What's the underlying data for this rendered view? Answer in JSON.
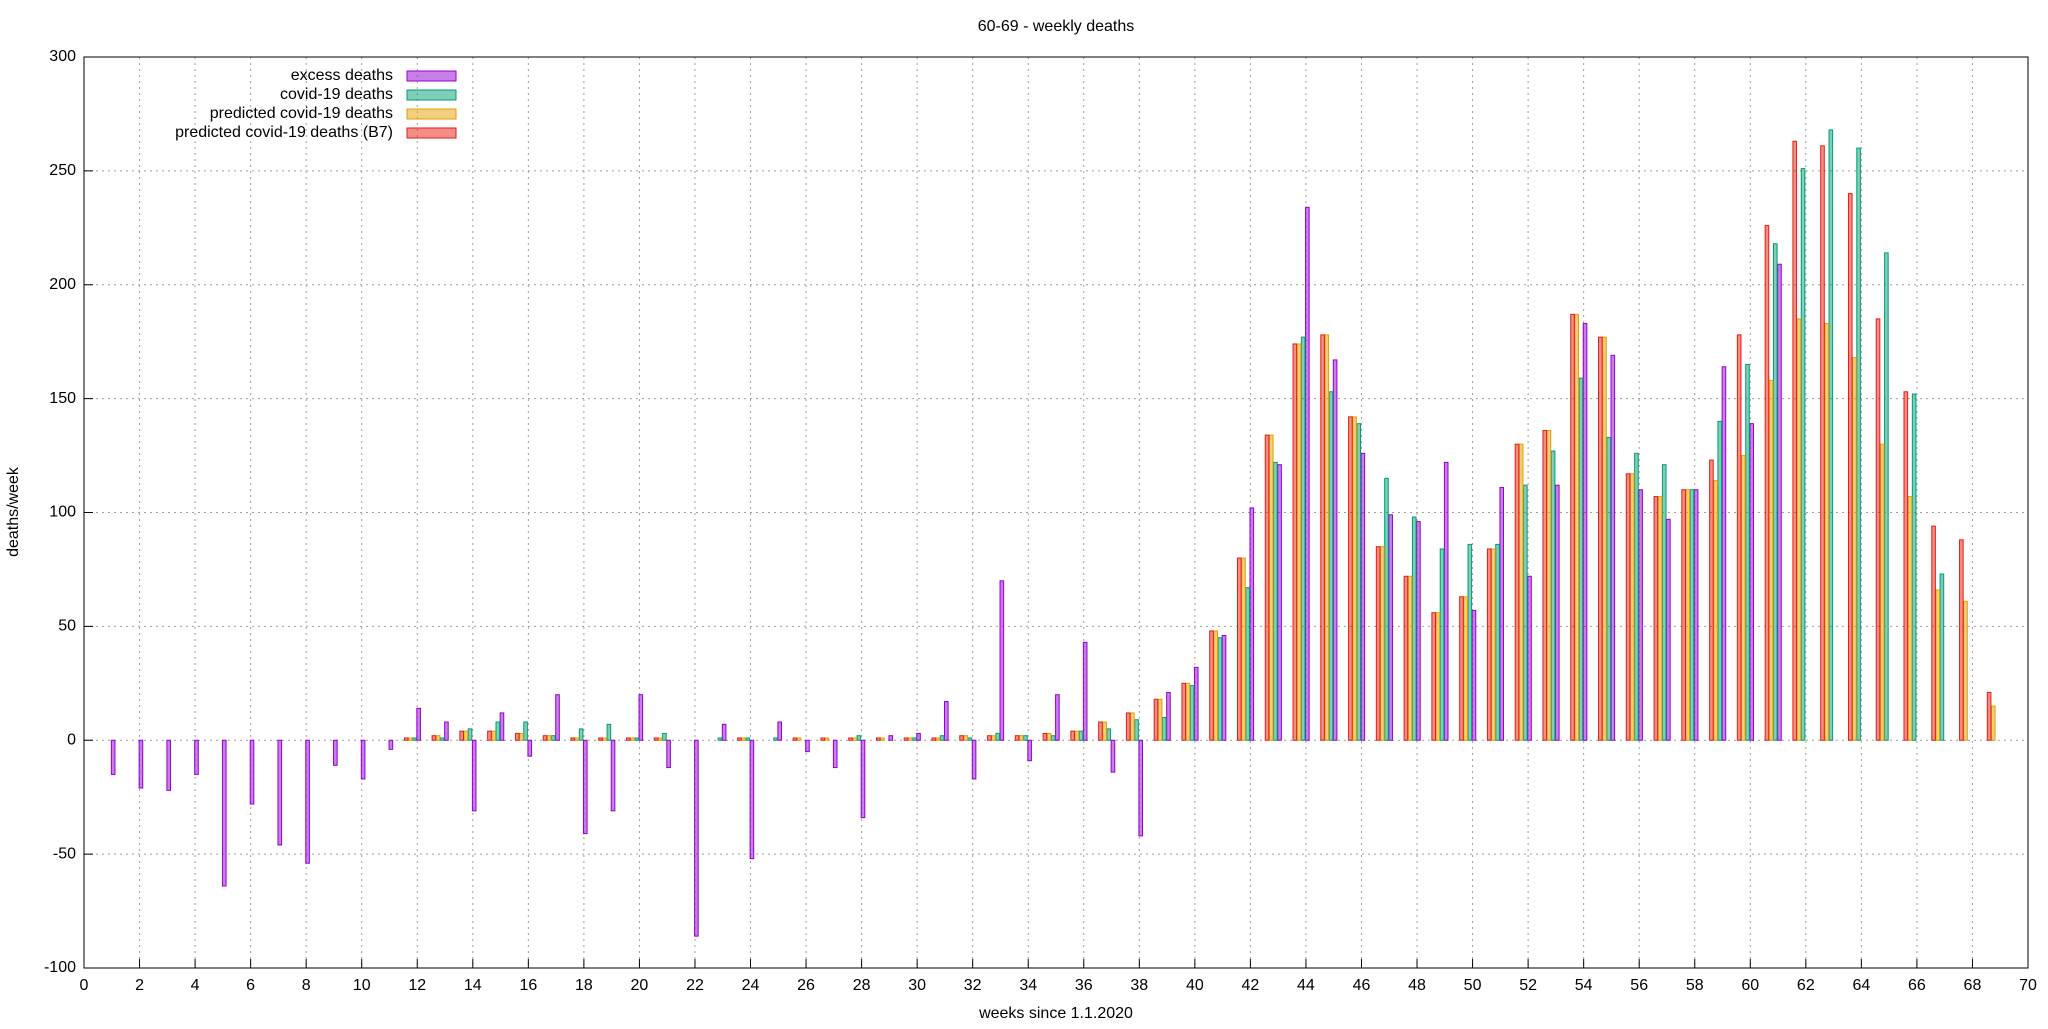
{
  "chart_data": {
    "type": "bar",
    "title": "60-69 - weekly deaths",
    "xlabel": "weeks since 1.1.2020",
    "ylabel": "deaths/week",
    "x": [
      1,
      2,
      3,
      4,
      5,
      6,
      7,
      8,
      9,
      10,
      11,
      12,
      13,
      14,
      15,
      16,
      17,
      18,
      19,
      20,
      21,
      22,
      23,
      24,
      25,
      26,
      27,
      28,
      29,
      30,
      31,
      32,
      33,
      34,
      35,
      36,
      37,
      38,
      39,
      40,
      41,
      42,
      43,
      44,
      45,
      46,
      47,
      48,
      49,
      50,
      51,
      52,
      53,
      54,
      55,
      56,
      57,
      58,
      59,
      60,
      61,
      62,
      63,
      64,
      65,
      66,
      67,
      68,
      69
    ],
    "series": [
      {
        "name": "excess deaths",
        "color": "#9400d3",
        "values": [
          -15,
          -21,
          -22,
          -15,
          -64,
          -28,
          -46,
          -54,
          -11,
          -17,
          -4,
          14,
          8,
          -31,
          12,
          -7,
          20,
          -41,
          -31,
          20,
          -12,
          -86,
          7,
          -52,
          8,
          -5,
          -12,
          -34,
          2,
          3,
          17,
          -17,
          70,
          -9,
          20,
          43,
          -14,
          -42,
          21,
          32,
          46,
          102,
          121,
          234,
          167,
          126,
          99,
          96,
          122,
          57,
          111,
          72,
          112,
          183,
          169,
          110,
          97,
          110,
          164,
          139,
          209,
          null,
          null,
          null,
          null,
          null,
          null,
          null,
          null
        ]
      },
      {
        "name": "covid-19 deaths",
        "color": "#009e73",
        "values": [
          0,
          0,
          0,
          0,
          0,
          0,
          0,
          0,
          0,
          0,
          0,
          1,
          1,
          5,
          8,
          8,
          2,
          5,
          7,
          1,
          3,
          0,
          1,
          1,
          1,
          0,
          0,
          2,
          0,
          1,
          2,
          1,
          3,
          2,
          2,
          4,
          5,
          9,
          10,
          24,
          45,
          67,
          122,
          177,
          153,
          139,
          115,
          98,
          84,
          86,
          86,
          112,
          127,
          159,
          133,
          126,
          121,
          110,
          140,
          165,
          218,
          251,
          268,
          260,
          214,
          152,
          73,
          null,
          null
        ]
      },
      {
        "name": "predicted covid-19 deaths",
        "color": "#e69f00",
        "values": [
          0,
          0,
          0,
          0,
          0,
          0,
          0,
          0,
          0,
          0,
          0,
          1,
          2,
          4,
          4,
          3,
          2,
          1,
          1,
          1,
          1,
          0,
          0,
          1,
          0,
          1,
          1,
          1,
          1,
          1,
          1,
          2,
          2,
          2,
          3,
          4,
          8,
          12,
          18,
          25,
          48,
          80,
          134,
          174,
          178,
          142,
          85,
          72,
          56,
          63,
          84,
          130,
          136,
          187,
          177,
          117,
          107,
          110,
          114,
          125,
          158,
          185,
          183,
          168,
          130,
          107,
          66,
          61,
          15
        ]
      },
      {
        "name": "predicted covid-19 deaths (B7)",
        "color": "#e51e10",
        "values": [
          0,
          0,
          0,
          0,
          0,
          0,
          0,
          0,
          0,
          0,
          0,
          1,
          2,
          4,
          4,
          3,
          2,
          1,
          1,
          1,
          1,
          0,
          0,
          1,
          0,
          1,
          1,
          1,
          1,
          1,
          1,
          2,
          2,
          2,
          3,
          4,
          8,
          12,
          18,
          25,
          48,
          80,
          134,
          174,
          178,
          142,
          85,
          72,
          56,
          63,
          84,
          130,
          136,
          187,
          177,
          117,
          107,
          110,
          123,
          178,
          226,
          263,
          261,
          240,
          185,
          153,
          94,
          88,
          21
        ]
      }
    ],
    "xlim": [
      0,
      70
    ],
    "xticks": [
      0,
      2,
      4,
      6,
      8,
      10,
      12,
      14,
      16,
      18,
      20,
      22,
      24,
      26,
      28,
      30,
      32,
      34,
      36,
      38,
      40,
      42,
      44,
      46,
      48,
      50,
      52,
      54,
      56,
      58,
      60,
      62,
      64,
      66,
      68,
      70
    ],
    "ylim": [
      -100,
      300
    ],
    "yticks": [
      -100,
      -50,
      0,
      50,
      100,
      150,
      200,
      250,
      300
    ],
    "grid": true,
    "legend": "top-left"
  }
}
